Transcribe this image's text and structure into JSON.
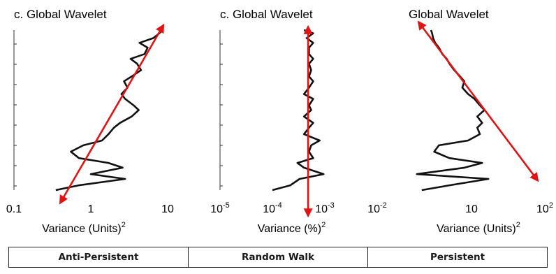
{
  "styles": {
    "curve_color": "#111111",
    "arrow_color": "#e01414",
    "axis_color": "#333333"
  },
  "chart_data": [
    {
      "type": "line",
      "orientation": "vertical",
      "title": "c. Global Wavelet",
      "xscale": "log",
      "xlim": [
        0.1,
        10
      ],
      "xticks": [
        {
          "value": 0.1,
          "base": "0.1",
          "exp": ""
        },
        {
          "value": 1,
          "base": "1",
          "exp": ""
        },
        {
          "value": 10,
          "base": "10",
          "exp": ""
        }
      ],
      "xlabel": "Variance (Units)",
      "xlabel_exp": "2",
      "ylim": [
        0,
        1
      ],
      "series": [
        {
          "y": [
            0.0,
            0.03,
            0.07,
            0.1,
            0.14,
            0.17,
            0.2,
            0.24,
            0.28,
            0.31,
            0.35,
            0.39,
            0.42,
            0.46,
            0.5,
            0.53,
            0.57,
            0.6,
            0.64,
            0.68,
            0.71,
            0.75,
            0.79,
            0.82,
            0.85,
            0.89,
            0.92,
            0.95,
            0.98,
            1.0
          ],
          "x": [
            0.35,
            0.7,
            2.8,
            1.0,
            2.6,
            1.7,
            0.7,
            0.55,
            0.8,
            1.4,
            1.7,
            2.0,
            2.4,
            3.4,
            4.2,
            3.6,
            2.8,
            2.5,
            3.0,
            2.7,
            3.4,
            4.5,
            4.0,
            3.3,
            5.0,
            5.5,
            4.3,
            6.5,
            7.8,
            8.5
          ]
        }
      ],
      "arrow": {
        "from": {
          "x": 0.4,
          "y": -0.08
        },
        "to": {
          "x": 8.8,
          "y": 1.03
        },
        "heads": "both"
      }
    },
    {
      "type": "line",
      "orientation": "vertical",
      "title": "c. Global Wavelet",
      "xscale": "log",
      "xlim": [
        1e-05,
        0.01
      ],
      "xticks": [
        {
          "value": 1e-05,
          "base": "10",
          "exp": "-5"
        },
        {
          "value": 0.0001,
          "base": "10",
          "exp": "-4"
        },
        {
          "value": 0.001,
          "base": "10",
          "exp": "-3"
        },
        {
          "value": 0.01,
          "base": "10",
          "exp": "-2"
        }
      ],
      "xlabel": "Variance (%)",
      "xlabel_exp": "2",
      "ylim": [
        0,
        1
      ],
      "series": [
        {
          "y": [
            0.0,
            0.03,
            0.07,
            0.1,
            0.14,
            0.17,
            0.2,
            0.24,
            0.28,
            0.31,
            0.35,
            0.39,
            0.42,
            0.46,
            0.5,
            0.53,
            0.57,
            0.6,
            0.64,
            0.68,
            0.71,
            0.75,
            0.79,
            0.82,
            0.85,
            0.89,
            0.92,
            0.95,
            0.98,
            1.0
          ],
          "x": [
            0.0001,
            0.00022,
            0.00033,
            0.00095,
            0.0004,
            0.0003,
            0.0006,
            0.0005,
            0.00055,
            0.0008,
            0.0004,
            0.0005,
            0.0006,
            0.0004,
            0.00055,
            0.0005,
            0.0006,
            0.0004,
            0.0005,
            0.0006,
            0.0005,
            0.00055,
            0.0005,
            0.0006,
            0.0005,
            0.0005,
            0.0006,
            0.00045,
            0.0006,
            0.0004
          ]
        }
      ],
      "arrow": {
        "from": {
          "x": 0.00048,
          "y": -0.16
        },
        "to": {
          "x": 0.00048,
          "y": 1.02
        },
        "heads": "both"
      }
    },
    {
      "type": "line",
      "orientation": "vertical",
      "title": "Global Wavelet",
      "xscale": "log",
      "xlim": [
        1,
        100
      ],
      "xticks": [
        {
          "value": 10,
          "base": "10",
          "exp": ""
        },
        {
          "value": 100,
          "base": "10",
          "exp": "2"
        }
      ],
      "xlabel": "Variance (Units)",
      "xlabel_exp": "2",
      "ylim": [
        0,
        1
      ],
      "series": [
        {
          "y": [
            0.0,
            0.03,
            0.07,
            0.1,
            0.14,
            0.17,
            0.2,
            0.24,
            0.28,
            0.31,
            0.35,
            0.39,
            0.42,
            0.46,
            0.5,
            0.53,
            0.57,
            0.6,
            0.64,
            0.68,
            0.71,
            0.75,
            0.79,
            0.82,
            0.85,
            0.89,
            0.92,
            0.95,
            0.98,
            1.0
          ],
          "x": [
            2.1,
            5.0,
            17.0,
            1.8,
            8.0,
            14.0,
            5.0,
            3.1,
            3.6,
            9.0,
            13.0,
            12.0,
            14.0,
            12.0,
            15.0,
            13.0,
            11.0,
            9.0,
            7.5,
            8.0,
            7.0,
            5.8,
            5.0,
            4.6,
            4.0,
            3.6,
            3.2,
            3.0,
            2.9,
            2.8
          ]
        }
      ],
      "arrow": {
        "from": {
          "x": 1.9,
          "y": 1.05
        },
        "to": {
          "x": 80,
          "y": 0.06
        },
        "heads": "both"
      }
    }
  ],
  "table": {
    "cells": [
      "Anti-Persistent",
      "Random Walk",
      "Persistent"
    ]
  }
}
